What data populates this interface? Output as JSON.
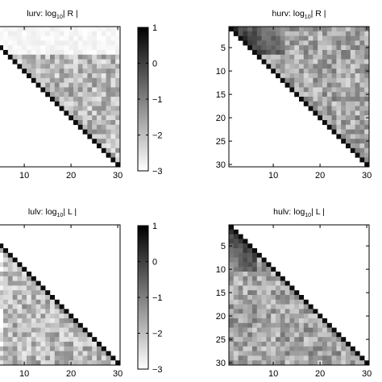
{
  "chart_data": [
    {
      "type": "heatmap",
      "title": "lurv:  log10| R |",
      "title_parts": {
        "prefix": "lurv:  log",
        "subscript": "10",
        "suffix": "| R |"
      },
      "matrix_size": 30,
      "structure": "upper-triangular",
      "x_ticks": [
        10,
        20,
        30
      ],
      "y_ticks": [],
      "color_scale": "gray (white = low, black = high)",
      "clim": [
        -3,
        1
      ],
      "description_values": {
        "diagonal": 0.8,
        "top_rows_1_to_6": -3.0,
        "upper_interior_mean": -1.9
      }
    },
    {
      "type": "heatmap",
      "title": "hurv:  log10| R |",
      "title_parts": {
        "prefix": "hurv:  log",
        "subscript": "10",
        "suffix": "| R |"
      },
      "matrix_size": 30,
      "structure": "upper-triangular",
      "x_ticks": [
        10,
        20,
        30
      ],
      "y_ticks": [
        5,
        10,
        15,
        20,
        25,
        30
      ],
      "color_scale": "gray (white = low, black = high)",
      "clim": [
        -3,
        1
      ],
      "description_values": {
        "diagonal": 0.8,
        "top_left_block_rows_1_to_6": 0.1,
        "upper_interior_mean": -1.6
      }
    },
    {
      "type": "heatmap",
      "title": "lulv:  log10| L |",
      "title_parts": {
        "prefix": "lulv:  log",
        "subscript": "10",
        "suffix": "| L |"
      },
      "matrix_size": 30,
      "structure": "lower-triangular",
      "x_ticks": [
        10,
        20,
        30
      ],
      "y_ticks": [],
      "color_scale": "gray (white = low, black = high)",
      "clim": [
        -3,
        1
      ],
      "description_values": {
        "diagonal": 0.8,
        "lower_interior_mean": -1.9
      }
    },
    {
      "type": "heatmap",
      "title": "hulv:  log10| L |",
      "title_parts": {
        "prefix": "hulv:  log",
        "subscript": "10",
        "suffix": "| L |"
      },
      "matrix_size": 30,
      "structure": "lower-triangular",
      "x_ticks": [
        10,
        20,
        30
      ],
      "y_ticks": [
        5,
        10,
        15,
        20,
        25,
        30
      ],
      "color_scale": "gray (white = low, black = high)",
      "clim": [
        -3,
        1
      ],
      "description_values": {
        "diagonal": 0.8,
        "top_left_block_rows_1_to_10": 0.1,
        "lower_interior_mean": -1.6
      }
    }
  ],
  "colorbars": [
    {
      "ticks": [
        1,
        0,
        -1,
        -2,
        -3
      ],
      "range": [
        -3,
        1
      ]
    },
    {
      "ticks": [
        1,
        0,
        -1,
        -2,
        -3
      ],
      "range": [
        -3,
        1
      ]
    }
  ]
}
